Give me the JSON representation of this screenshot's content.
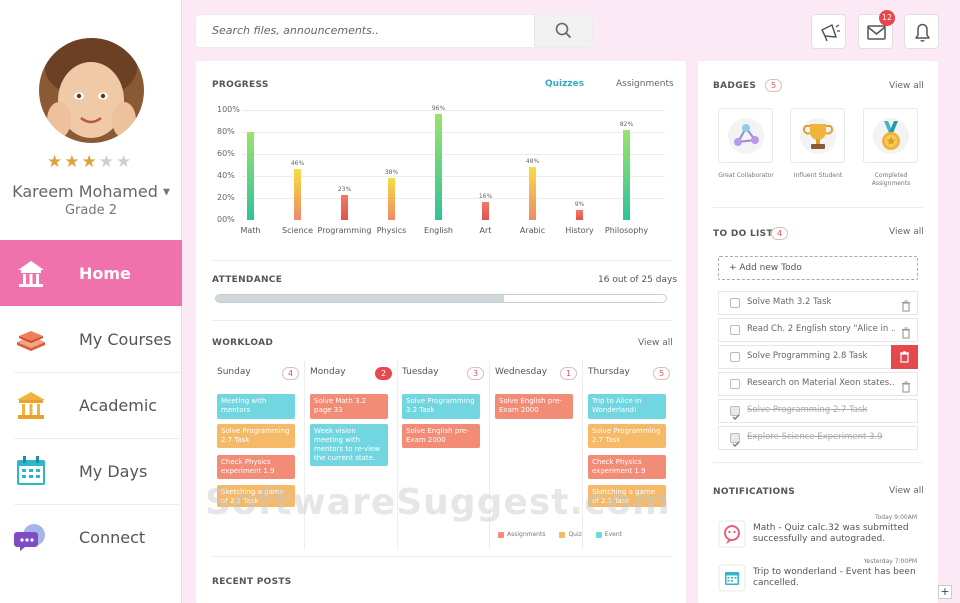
{
  "profile": {
    "name": "Kareem Mohamed",
    "grade": "Grade 2",
    "rating": 3,
    "max_rating": 5
  },
  "nav": [
    {
      "label": "Home",
      "icon": "home-icon",
      "active": true
    },
    {
      "label": "My Courses",
      "icon": "books-icon",
      "active": false
    },
    {
      "label": "Academic",
      "icon": "institution-icon",
      "active": false
    },
    {
      "label": "My Days",
      "icon": "calendar-icon",
      "active": false
    },
    {
      "label": "Connect",
      "icon": "chat-icon",
      "active": false
    }
  ],
  "search": {
    "placeholder": "Search files, announcements.."
  },
  "topbar": {
    "megaphone_icon": "megaphone-icon",
    "mail_icon": "mail-icon",
    "mail_count": "12",
    "bell_icon": "bell-icon"
  },
  "progress": {
    "title": "PROGRESS",
    "tab_quizzes": "Quizzes",
    "tab_assignments": "Assignments",
    "active_tab": "Quizzes"
  },
  "chart_data": {
    "type": "bar",
    "categories": [
      "Math",
      "Science",
      "Programming",
      "Physics",
      "English",
      "Art",
      "Arabic",
      "History",
      "Philosophy"
    ],
    "values": [
      80,
      46,
      23,
      38,
      96,
      16,
      48,
      9,
      82
    ],
    "data_labels": [
      "",
      "46%",
      "23%",
      "38%",
      "96%",
      "16%",
      "48%",
      "9%",
      "82%"
    ],
    "yticks": [
      "100%",
      "80%",
      "60%",
      "40%",
      "20%",
      "00%"
    ],
    "ylim": [
      0,
      100
    ],
    "grid": true,
    "colors": {
      "high_top": "#9be36a",
      "high_bottom": "#2ec39a",
      "mid_top": "#f7dc3f",
      "mid_bottom": "#ee8b6a",
      "low_top": "#f47a63",
      "low_bottom": "#e05252"
    }
  },
  "attendance": {
    "title": "ATTENDANCE",
    "summary": "16 out of 25 days",
    "attended": 16,
    "total": 25
  },
  "workload": {
    "title": "WORKLOAD",
    "view_all": "View all",
    "days": [
      {
        "name": "Sunday",
        "count": "4",
        "tasks": [
          {
            "text": "Meeting with mentors",
            "kind": "event"
          },
          {
            "text": "Solve Programming 2.7 Task",
            "kind": "quiz"
          },
          {
            "text": "Check Physics experiment 1.9",
            "kind": "assignment"
          },
          {
            "text": "Sketching a game of 2.1 Task",
            "kind": "quiz"
          }
        ]
      },
      {
        "name": "Monday",
        "count": "2",
        "tasks": [
          {
            "text": "Solve Math 3.2 page 33",
            "kind": "assignment"
          },
          {
            "text": "Week vision meeting with mentors to re-view the current state.",
            "kind": "event"
          }
        ]
      },
      {
        "name": "Tuesday",
        "count": "3",
        "tasks": [
          {
            "text": "Solve Programming 3.2 Task",
            "kind": "event"
          },
          {
            "text": "Solve English pre-Exam 2000",
            "kind": "assignment"
          }
        ]
      },
      {
        "name": "Wednesday",
        "count": "1",
        "tasks": [
          {
            "text": "Solve English pre-Exam 2000",
            "kind": "assignment"
          }
        ]
      },
      {
        "name": "Thursday",
        "count": "5",
        "tasks": [
          {
            "text": "Trip to Alice in Wonderland!",
            "kind": "event"
          },
          {
            "text": "Solve Programming 2.7 Task",
            "kind": "quiz"
          },
          {
            "text": "Check Physics experiment 1.9",
            "kind": "assignment"
          },
          {
            "text": "Sketching a game of 2.1 Task",
            "kind": "quiz"
          }
        ]
      }
    ],
    "legend": [
      {
        "label": "Assignments",
        "color": "#f28c77"
      },
      {
        "label": "Quiz",
        "color": "#f5b967"
      },
      {
        "label": "Event",
        "color": "#72d6e0"
      }
    ]
  },
  "recent_posts": {
    "title": "RECENT POSTS"
  },
  "badges": {
    "title": "BADGES",
    "count": "5",
    "view_all": "View all",
    "items": [
      {
        "label": "Great Collaborator",
        "icon": "molecule-icon"
      },
      {
        "label": "Influent Student",
        "icon": "trophy-icon"
      },
      {
        "label": "Completed Assignments",
        "icon": "medal-icon"
      }
    ]
  },
  "todo": {
    "title": "TO DO LIST",
    "count": "4",
    "view_all": "View all",
    "add_label": "+ Add new Todo",
    "items": [
      {
        "text": "Solve Math 3.2 Task",
        "done": false
      },
      {
        "text": "Read Ch. 2 English story \"Alice in ...",
        "done": false
      },
      {
        "text": "Solve Programming 2.8 Task",
        "done": false
      },
      {
        "text": "Research on Material Xeon states...",
        "done": false
      },
      {
        "text": "Solve Programming 2.7 Task",
        "done": true
      },
      {
        "text": "Explore Science Experiment 3.9",
        "done": true
      }
    ]
  },
  "notifications": {
    "title": "NOTIFICATIONS",
    "view_all": "View all",
    "items": [
      {
        "time": "Today 9:00AM",
        "text": "Math - Quiz calc.32 was submitted successfully and autograded.",
        "icon": "quiz-icon"
      },
      {
        "time": "Yesterday 7:00PM",
        "text": "Trip to wonderland - Event has been cancelled.",
        "icon": "calendar-icon"
      }
    ]
  },
  "watermark": "SoftwareSuggest.com"
}
